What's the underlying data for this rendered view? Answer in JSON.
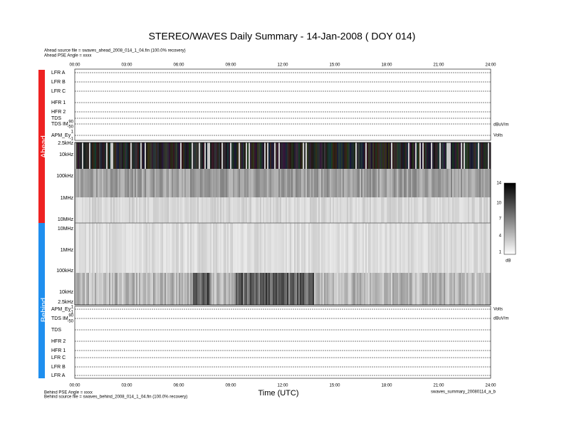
{
  "header": {
    "title": "STEREO/WAVES Daily Summary - 14-Jan-2008 ( DOY 014)",
    "ahead_source": "Ahead source file = swaves_ahead_2008_014_1_04.fin (100.0% recovery)",
    "ahead_angle": "Ahead PSE Angle = xxxx"
  },
  "time_axis": {
    "label": "Time (UTC)",
    "ticks": [
      "00:00",
      "03:00",
      "06:00",
      "09:00",
      "12:00",
      "15:00",
      "18:00",
      "21:00",
      "24:00"
    ]
  },
  "ahead": {
    "side_label": "Ahead",
    "panels": [
      "LFR A",
      "LFR B",
      "LFR C",
      "HFR 1",
      "HFR 2",
      "TDS",
      "TDS IM",
      "APM_Ey"
    ],
    "tds_im_ticks": [
      "90",
      "-50"
    ],
    "apm_ticks": [
      "1",
      "-1"
    ],
    "tds_im_unit": "dBuV/m",
    "apm_unit": "Volts",
    "frequency_labels": [
      "2.5kHz",
      "10kHz",
      "100kHz",
      "1MHz",
      "10MHz"
    ]
  },
  "behind": {
    "side_label": "Behind",
    "panels": [
      "APM_Ey",
      "TDS IM",
      "TDS",
      "HFR 2",
      "HFR 1",
      "LFR C",
      "LFR B",
      "LFR A"
    ],
    "apm_ticks": [
      "1",
      "-1"
    ],
    "tds_im_ticks": [
      "90",
      "-50"
    ],
    "tds_im_unit": "dBuV/m",
    "apm_unit": "Volts",
    "frequency_labels": [
      "10MHz",
      "1MHz",
      "100kHz",
      "10kHz",
      "2.5kHz"
    ]
  },
  "colorbar": {
    "ticks": [
      "14",
      "10",
      "7",
      "4",
      "1"
    ],
    "unit": "dB"
  },
  "footer": {
    "behind_angle": "Behind PSE Angle = xxxx",
    "behind_source": "Behind source file = swaves_behind_2008_014_1_04.fin (100.0% recovery)",
    "file_name": "swaves_summary_20080114_a_b"
  }
}
